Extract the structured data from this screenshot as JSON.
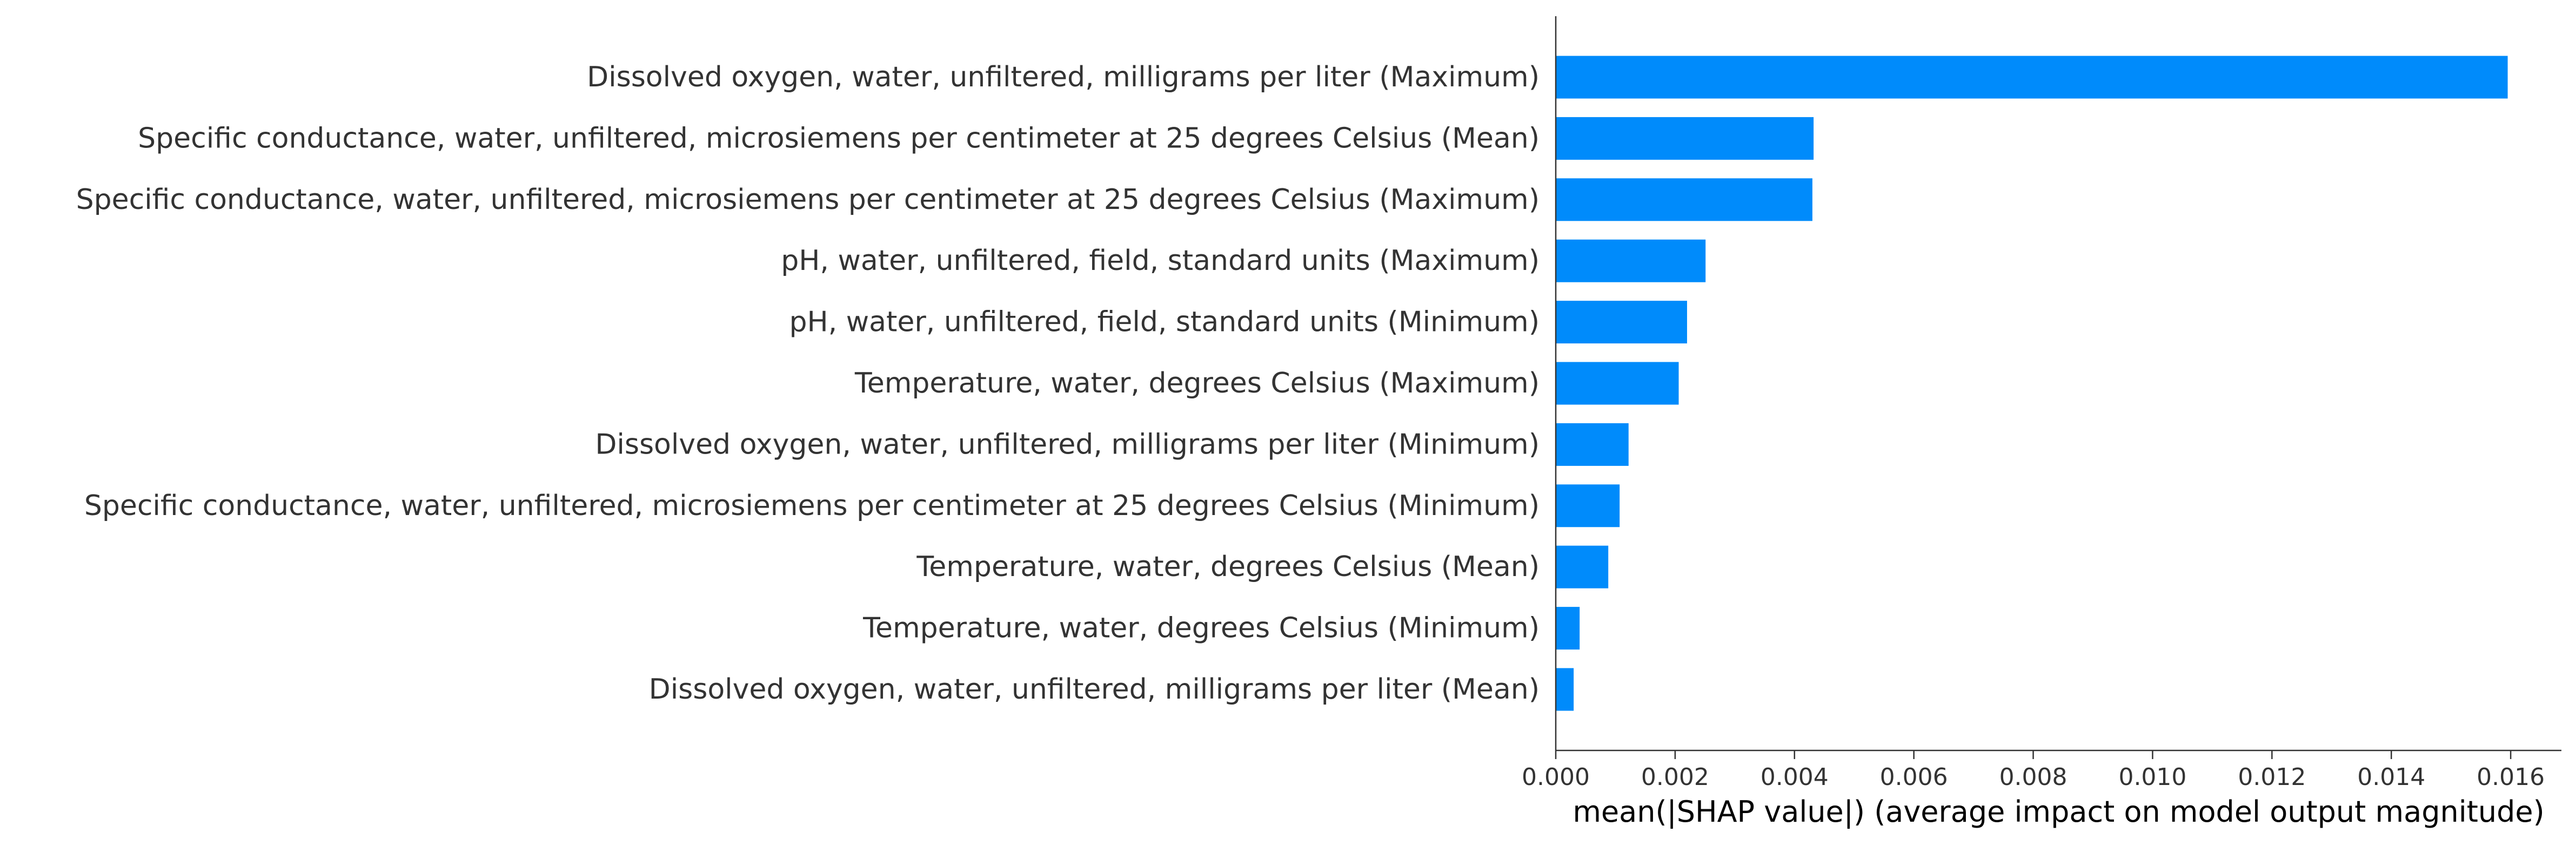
{
  "chart_data": {
    "type": "bar",
    "orientation": "horizontal",
    "categories": [
      "Dissolved oxygen, water, unfiltered, milligrams per liter (Maximum)",
      "Specific conductance, water, unfiltered, microsiemens per centimeter at 25 degrees Celsius (Mean)",
      "Specific conductance, water, unfiltered, microsiemens per centimeter at 25 degrees Celsius (Maximum)",
      "pH, water, unfiltered, field, standard units (Maximum)",
      "pH, water, unfiltered, field, standard units (Minimum)",
      "Temperature, water, degrees Celsius (Maximum)",
      "Dissolved oxygen, water, unfiltered, milligrams per liter (Minimum)",
      "Specific conductance, water, unfiltered, microsiemens per centimeter at 25 degrees Celsius (Minimum)",
      "Temperature, water, degrees Celsius (Mean)",
      "Temperature, water, degrees Celsius (Minimum)",
      "Dissolved oxygen, water, unfiltered, milligrams per liter (Mean)"
    ],
    "values": [
      0.01595,
      0.00432,
      0.0043,
      0.00251,
      0.0022,
      0.00206,
      0.00122,
      0.00107,
      0.00088,
      0.0004,
      0.0003
    ],
    "xlabel": "mean(|SHAP value|) (average impact on model output magnitude)",
    "xticks": [
      "0.000",
      "0.002",
      "0.004",
      "0.006",
      "0.008",
      "0.010",
      "0.012",
      "0.014",
      "0.016"
    ],
    "xlim": [
      0,
      0.01685
    ],
    "bar_color": "#008bfb",
    "spine_color": "#333333",
    "grid": false,
    "legend": "none"
  }
}
